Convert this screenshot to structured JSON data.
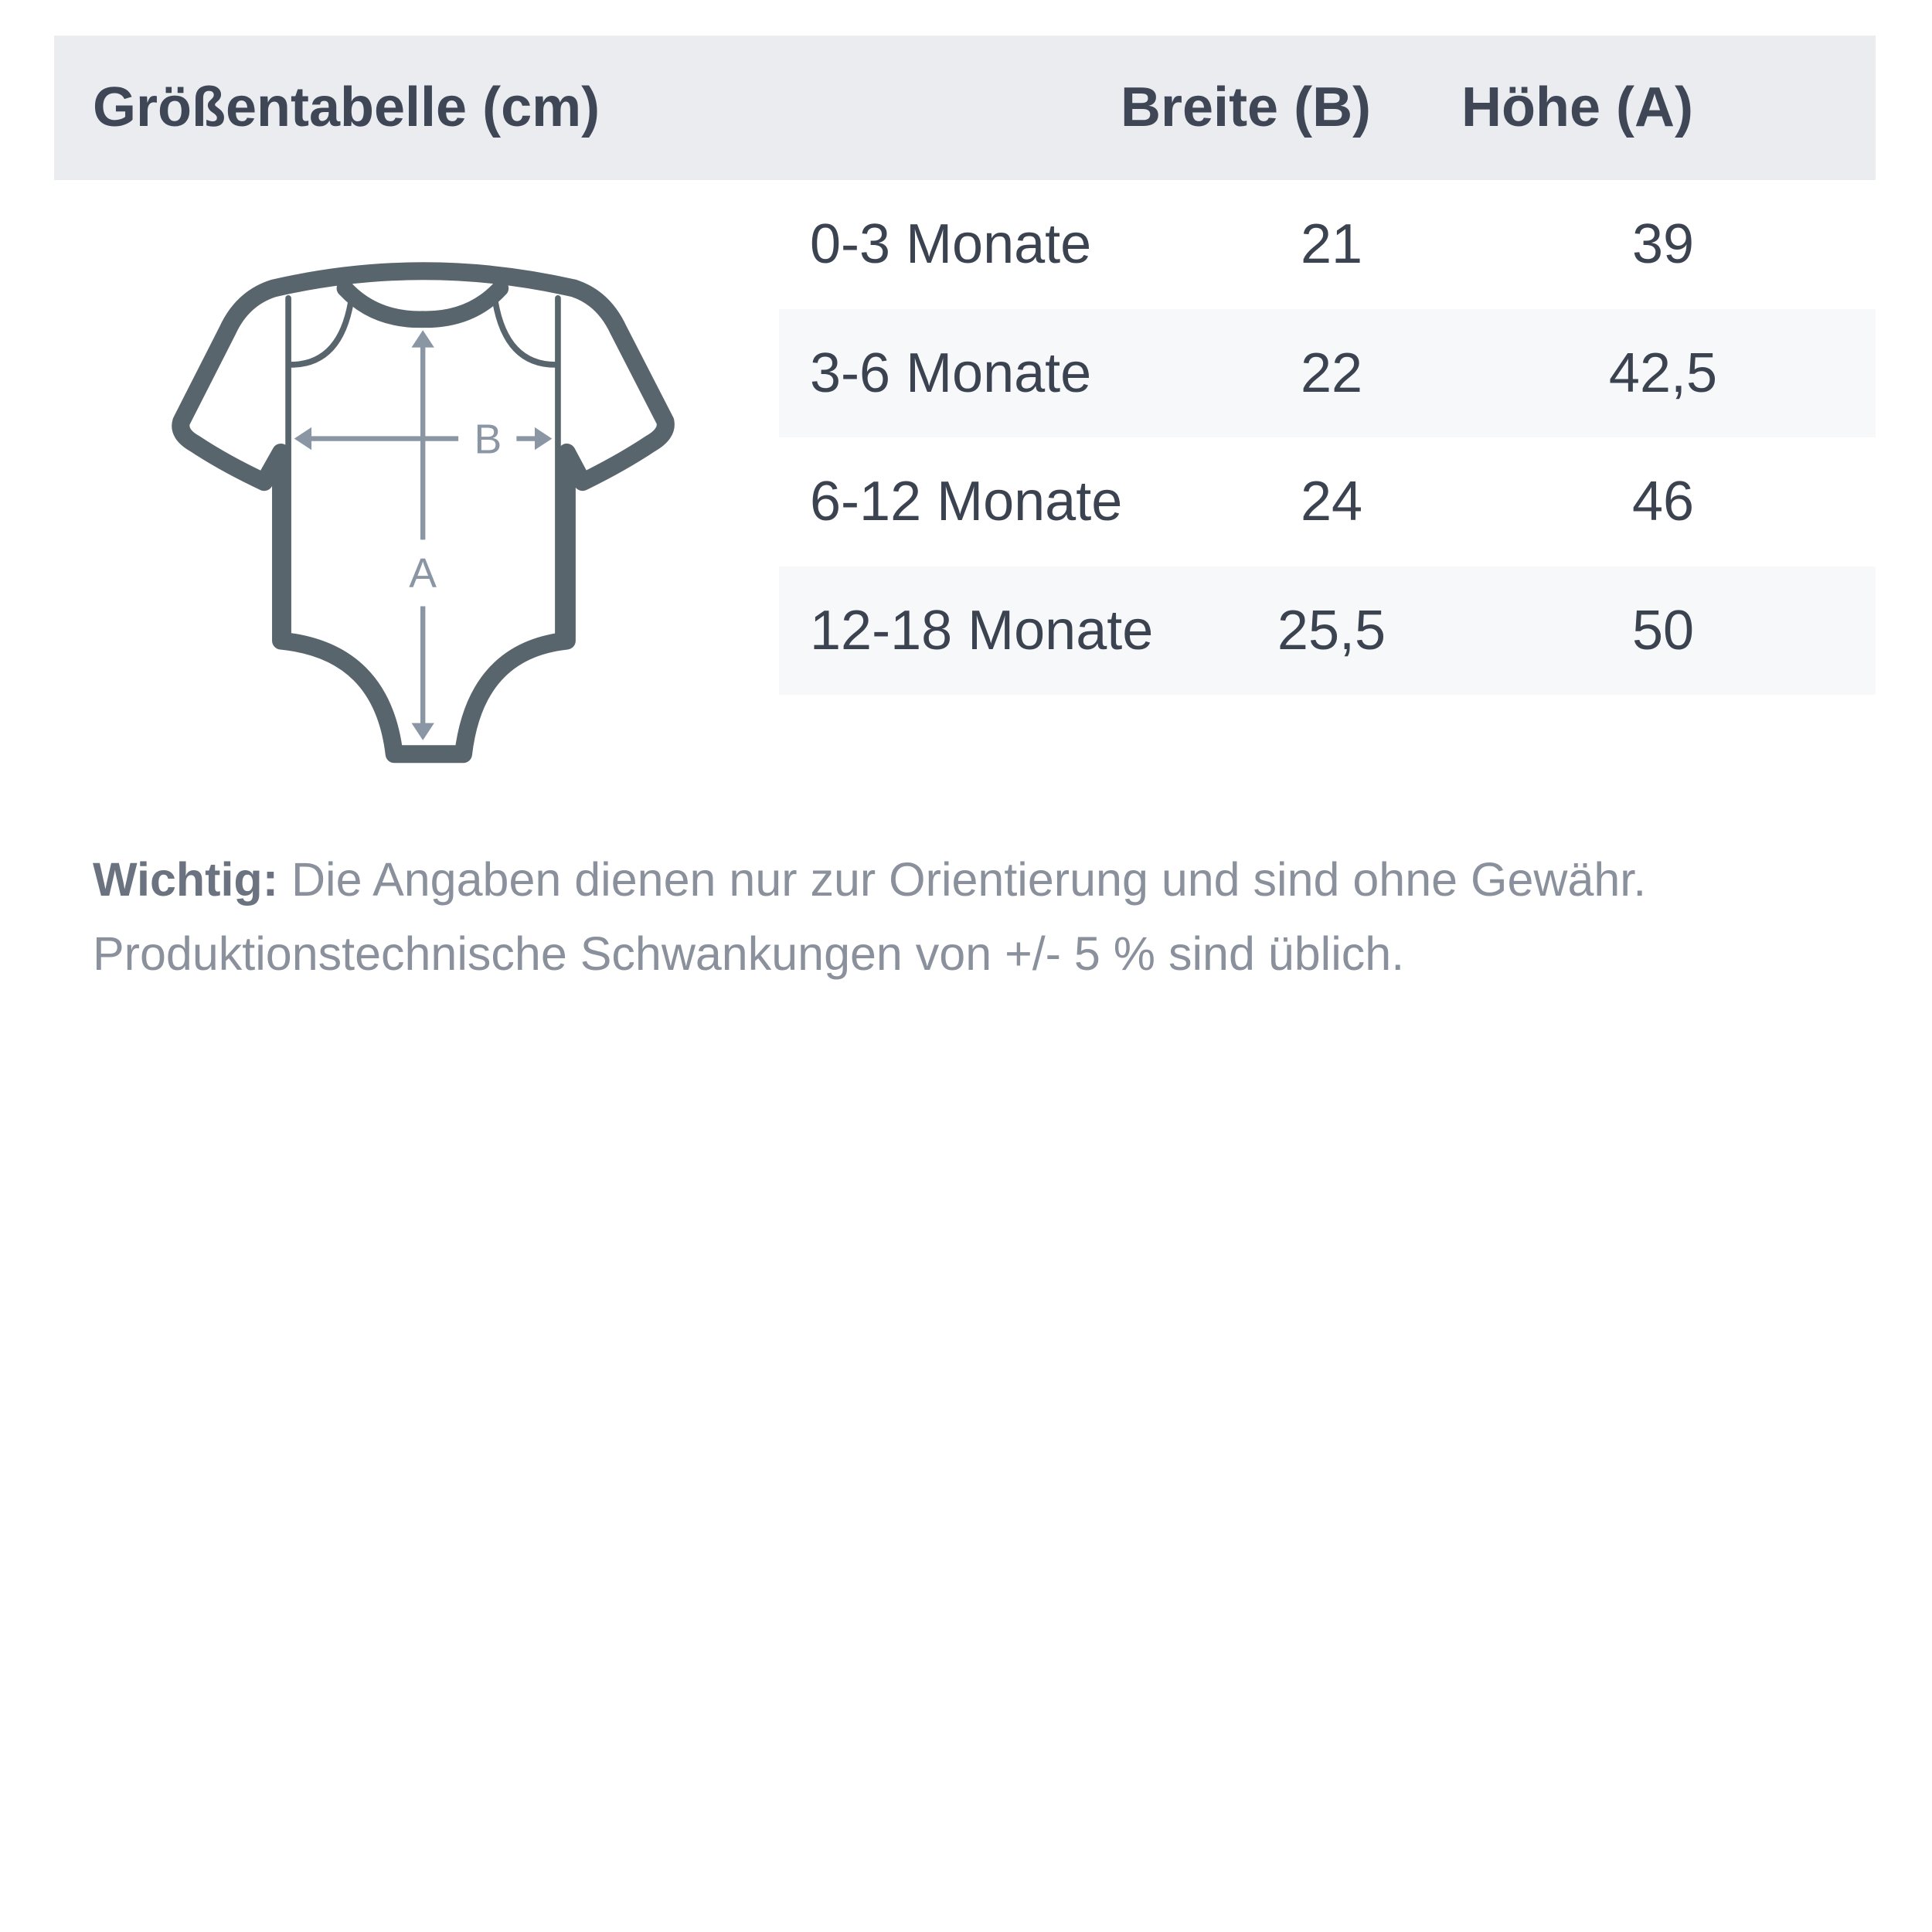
{
  "header": {
    "title": "Größentabelle (cm)",
    "col_width": "Breite (B)",
    "col_height": "Höhe (A)"
  },
  "rows": [
    {
      "size": "0-3 Monate",
      "width": "21",
      "height": "39"
    },
    {
      "size": "3-6 Monate",
      "width": "22",
      "height": "42,5"
    },
    {
      "size": "6-12 Monate",
      "width": "24",
      "height": "46"
    },
    {
      "size": "12-18 Monate",
      "width": "25,5",
      "height": "50"
    }
  ],
  "diagram": {
    "icon": "baby-bodysuit-icon",
    "label_b": "B",
    "label_a": "A"
  },
  "note": {
    "bold": "Wichtig:",
    "text": " Die Angaben dienen nur zur Orientierung und sind ohne Gewähr. Produktionstechnische Schwankungen von +/- 5 % sind üblich."
  },
  "colors": {
    "header_bg": "#eaecf0",
    "outline": "#58656d",
    "arrow": "#8a96a3",
    "text": "#3f4756"
  }
}
